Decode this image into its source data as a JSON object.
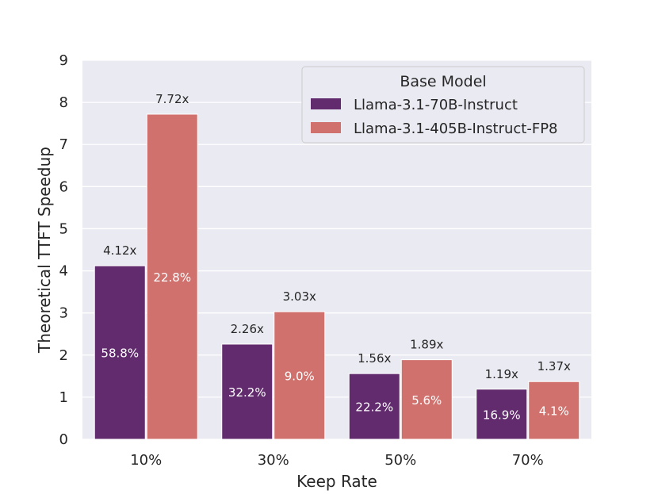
{
  "chart_data": {
    "type": "bar",
    "xlabel": "Keep Rate",
    "ylabel": "Theoretical TTFT Speedup",
    "categories": [
      "10%",
      "30%",
      "50%",
      "70%"
    ],
    "ylim": [
      0,
      9
    ],
    "yticks": [
      0,
      1,
      2,
      3,
      4,
      5,
      6,
      7,
      8,
      9
    ],
    "grid": true,
    "legend": {
      "title": "Base Model",
      "placement": "top-right"
    },
    "series": [
      {
        "name": "Llama-3.1-70B-Instruct",
        "color": "#622b6e",
        "values": [
          4.12,
          2.26,
          1.56,
          1.19
        ],
        "top_labels": [
          "4.12x",
          "2.26x",
          "1.56x",
          "1.19x"
        ],
        "inner_labels": [
          "58.8%",
          "32.2%",
          "22.2%",
          "16.9%"
        ]
      },
      {
        "name": "Llama-3.1-405B-Instruct-FP8",
        "color": "#d0716d",
        "values": [
          7.72,
          3.03,
          1.89,
          1.37
        ],
        "top_labels": [
          "7.72x",
          "3.03x",
          "1.89x",
          "1.37x"
        ],
        "inner_labels": [
          "22.8%",
          "9.0%",
          "5.6%",
          "4.1%"
        ]
      }
    ]
  }
}
